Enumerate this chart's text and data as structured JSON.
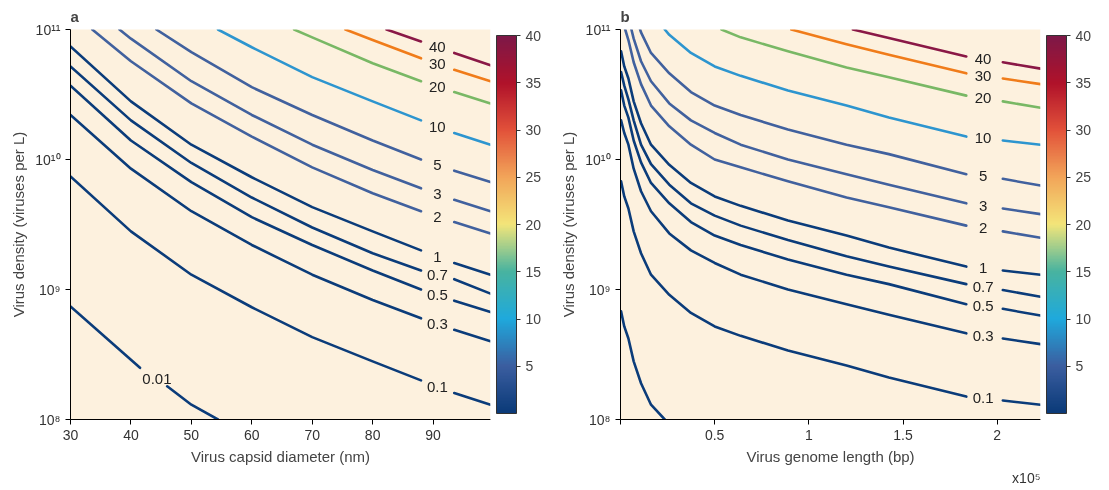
{
  "chart_data": [
    {
      "type": "line",
      "title": "a",
      "xlabel": "Virus capsid diameter (nm)",
      "ylabel": "Virus density (viruses per L)",
      "log": "y",
      "xlim": [
        30,
        99.5
      ],
      "ylim": [
        100000000.0,
        100000000000.0
      ],
      "xticks": [
        30,
        40,
        50,
        60,
        70,
        80,
        90
      ],
      "yticks": [
        {
          "value": 100000000.0,
          "label": "10⁸"
        },
        {
          "value": 1000000000.0,
          "label": "10⁹"
        },
        {
          "value": 10000000000.0,
          "label": "10¹⁰"
        },
        {
          "value": 100000000000.0,
          "label": "10¹¹"
        }
      ],
      "clim": [
        0,
        40
      ],
      "cticks": [
        5,
        10,
        15,
        20,
        25,
        30,
        35,
        40
      ],
      "series": [
        {
          "name": "0.01",
          "color": "#0b3c7a",
          "x": [
            30,
            41.5,
            44.3,
            46,
            50,
            54.4
          ],
          "values": [
            740000000.0,
            250000000.0,
            null,
            180000000.0,
            130000000.0,
            100000000.0
          ]
        },
        {
          "name": "0.1",
          "color": "#0b3c7a",
          "x": [
            30,
            40,
            50,
            60,
            70,
            80,
            88,
            90.7,
            93.5,
            99.5
          ],
          "values": [
            7400000000.0,
            2800000000.0,
            1300000000.0,
            730000000.0,
            430000000.0,
            280000000.0,
            200000000.0,
            null,
            160000000.0,
            130000000.0
          ]
        },
        {
          "name": "0.3",
          "color": "#0b3c7a",
          "x": [
            30,
            40,
            50,
            60,
            70,
            80,
            88,
            90.7,
            93.5,
            99.5
          ],
          "values": [
            22000000000.0,
            8500000000.0,
            4000000000.0,
            2200000000.0,
            1300000000.0,
            830000000.0,
            600000000.0,
            null,
            490000000.0,
            400000000.0
          ]
        },
        {
          "name": "0.5",
          "color": "#0b3c7a",
          "x": [
            30,
            40,
            50,
            60,
            70,
            80,
            88,
            90.7,
            93.5,
            99.5
          ],
          "values": [
            37000000000.0,
            14000000000.0,
            6700000000.0,
            3600000000.0,
            2200000000.0,
            1400000000.0,
            1000000000.0,
            null,
            820000000.0,
            670000000.0
          ]
        },
        {
          "name": "0.7",
          "color": "#0b3c7a",
          "x": [
            30,
            40,
            50,
            60,
            70,
            80,
            88,
            90.7,
            93.5,
            99.5
          ],
          "values": [
            52000000000.0,
            20000000000.0,
            9400000000.0,
            5100000000.0,
            3000000000.0,
            1900000000.0,
            1400000000.0,
            null,
            1200000000.0,
            930000000.0
          ]
        },
        {
          "name": "1",
          "color": "#0b3c7a",
          "x": [
            30,
            40,
            50,
            60,
            70,
            80,
            88,
            90.7,
            93.5,
            99.5
          ],
          "values": [
            74000000000.0,
            28000000000.0,
            13000000000.0,
            7300000000.0,
            4300000000.0,
            2800000000.0,
            2000000000.0,
            null,
            1600000000.0,
            1300000000.0
          ]
        },
        {
          "name": "2",
          "color": "#41619e",
          "x": [
            33.6,
            40,
            50,
            60,
            70,
            80,
            88,
            90.7,
            93.5,
            99.5
          ],
          "values": [
            100000000000.0,
            57000000000.0,
            27000000000.0,
            15000000000.0,
            8700000000.0,
            5500000000.0,
            4000000000.0,
            null,
            3300000000.0,
            2700000000.0
          ]
        },
        {
          "name": "3",
          "color": "#41619e",
          "x": [
            38.1,
            40,
            50,
            60,
            70,
            80,
            88,
            90.7,
            93.5,
            99.5
          ],
          "values": [
            100000000000.0,
            85000000000.0,
            40000000000.0,
            22000000000.0,
            13000000000.0,
            8300000000.0,
            6000000000.0,
            null,
            4900000000.0,
            4000000000.0
          ]
        },
        {
          "name": "5",
          "color": "#41619e",
          "x": [
            44.2,
            50,
            60,
            70,
            80,
            88,
            90.7,
            93.5,
            99.5
          ],
          "values": [
            100000000000.0,
            67000000000.0,
            36000000000.0,
            22000000000.0,
            14000000000.0,
            10000000000.0,
            null,
            8200000000.0,
            6700000000.0
          ]
        },
        {
          "name": "10",
          "color": "#2d95cf",
          "x": [
            54.4,
            60,
            70,
            80,
            88,
            90.7,
            93.5,
            99.5
          ],
          "values": [
            100000000000.0,
            73000000000.0,
            43000000000.0,
            28000000000.0,
            20000000000.0,
            null,
            16000000000.0,
            13000000000.0
          ]
        },
        {
          "name": "20",
          "color": "#79b865",
          "x": [
            67.0,
            70,
            80,
            88,
            90.7,
            93.5,
            99.5
          ],
          "values": [
            100000000000.0,
            87000000000.0,
            55000000000.0,
            40000000000.0,
            null,
            33000000000.0,
            27000000000.0
          ]
        },
        {
          "name": "30",
          "color": "#f07c1a",
          "x": [
            75.5,
            80,
            88,
            90.7,
            93.5,
            99.5
          ],
          "values": [
            100000000000.0,
            83000000000.0,
            60000000000.0,
            null,
            49000000000.0,
            40000000000.0
          ]
        },
        {
          "name": "40",
          "color": "#8a1846",
          "x": [
            82.3,
            88,
            90.7,
            93.5,
            99.5
          ],
          "values": [
            100000000000.0,
            81000000000.0,
            null,
            66000000000.0,
            53000000000.0
          ]
        }
      ]
    },
    {
      "type": "line",
      "title": "b",
      "xlabel": "Virus genome length (bp)",
      "ylabel": "Virus density (viruses per L)",
      "log": "y",
      "xlim": [
        0,
        2.23
      ],
      "ylim": [
        100000000.0,
        100000000000.0
      ],
      "xticks": [
        {
          "value": 0,
          "label": null
        },
        0.5,
        1,
        1.5,
        2
      ],
      "yticks": [
        {
          "value": 100000000.0,
          "label": "10⁸"
        },
        {
          "value": 1000000000.0,
          "label": "10⁹"
        },
        {
          "value": 10000000000.0,
          "label": "10¹⁰"
        },
        {
          "value": 100000000000.0,
          "label": "10¹¹"
        }
      ],
      "clim": [
        0,
        40
      ],
      "cticks": [
        5,
        10,
        15,
        20,
        25,
        30,
        35,
        40
      ],
      "annotations": [
        "x10⁵"
      ],
      "series": [
        {
          "color": "#0b3c7a",
          "x": [
            0.003,
            0.02,
            0.042,
            0.07,
            0.109,
            0.162,
            0.235
          ],
          "values": [
            680000000.0,
            520000000.0,
            420000000.0,
            280000000.0,
            190000000.0,
            130000000.0,
            100000000.0
          ]
        },
        {
          "name": "0.1",
          "color": "#0b3c7a",
          "x": [
            0.003,
            0.02,
            0.042,
            0.07,
            0.109,
            0.162,
            0.259,
            0.374,
            0.5,
            0.638,
            0.889,
            1.2,
            1.425,
            1.836,
            1.925,
            2.03,
            2.23
          ],
          "values": [
            6800000000.0,
            5200000000.0,
            4200000000.0,
            2800000000.0,
            1900000000.0,
            1300000000.0,
            910000000.0,
            660000000.0,
            520000000.0,
            440000000.0,
            340000000.0,
            260000000.0,
            210000000.0,
            150000000.0,
            null,
            140000000.0,
            130000000.0
          ]
        },
        {
          "name": "0.3",
          "color": "#0b3c7a",
          "x": [
            0.003,
            0.02,
            0.042,
            0.07,
            0.109,
            0.162,
            0.259,
            0.374,
            0.5,
            0.638,
            0.889,
            1.2,
            1.425,
            1.836,
            1.925,
            2.03,
            2.23
          ],
          "values": [
            20000000000.0,
            16000000000.0,
            13000000000.0,
            8500000000.0,
            5700000000.0,
            4000000000.0,
            2700000000.0,
            2000000000.0,
            1600000000.0,
            1300000000.0,
            1000000000.0,
            770000000.0,
            640000000.0,
            460000000.0,
            null,
            420000000.0,
            380000000.0
          ]
        },
        {
          "name": "0.5",
          "color": "#0b3c7a",
          "x": [
            0.003,
            0.02,
            0.042,
            0.07,
            0.109,
            0.162,
            0.259,
            0.374,
            0.5,
            0.638,
            0.889,
            1.2,
            1.425,
            1.836,
            1.925,
            2.03,
            2.23
          ],
          "values": [
            34000000000.0,
            26000000000.0,
            21000000000.0,
            14000000000.0,
            9500000000.0,
            6600000000.0,
            4600000000.0,
            3300000000.0,
            2600000000.0,
            2200000000.0,
            1700000000.0,
            1300000000.0,
            1100000000.0,
            770000000.0,
            null,
            710000000.0,
            630000000.0
          ]
        },
        {
          "name": "0.7",
          "color": "#0b3c7a",
          "x": [
            0.003,
            0.02,
            0.042,
            0.07,
            0.109,
            0.162,
            0.259,
            0.374,
            0.5,
            0.638,
            0.889,
            1.2,
            1.425,
            1.836,
            1.925,
            2.03,
            2.23
          ],
          "values": [
            47000000000.0,
            37000000000.0,
            29000000000.0,
            20000000000.0,
            13000000000.0,
            9200000000.0,
            6400000000.0,
            4600000000.0,
            3700000000.0,
            3100000000.0,
            2400000000.0,
            1800000000.0,
            1500000000.0,
            1100000000.0,
            null,
            990000000.0,
            880000000.0
          ]
        },
        {
          "name": "1",
          "color": "#0b3c7a",
          "x": [
            0.003,
            0.02,
            0.042,
            0.07,
            0.109,
            0.162,
            0.259,
            0.374,
            0.5,
            0.638,
            0.889,
            1.2,
            1.425,
            1.836,
            1.925,
            2.03,
            2.23
          ],
          "values": [
            68000000000.0,
            52000000000.0,
            42000000000.0,
            28000000000.0,
            19000000000.0,
            13000000000.0,
            9100000000.0,
            6600000000.0,
            5200000000.0,
            4400000000.0,
            3400000000.0,
            2600000000.0,
            2100000000.0,
            1500000000.0,
            null,
            1400000000.0,
            1300000000.0
          ]
        },
        {
          "name": "2",
          "color": "#41619e",
          "x": [
            0.025,
            0.042,
            0.07,
            0.109,
            0.162,
            0.259,
            0.374,
            0.5,
            0.638,
            0.889,
            1.2,
            1.425,
            1.836,
            1.925,
            2.03,
            2.23
          ],
          "values": [
            100000000000.0,
            83000000000.0,
            56000000000.0,
            38000000000.0,
            26000000000.0,
            18000000000.0,
            13000000000.0,
            10000000000.0,
            8700000000.0,
            6800000000.0,
            5100000000.0,
            4300000000.0,
            3100000000.0,
            null,
            2800000000.0,
            2500000000.0
          ]
        },
        {
          "name": "3",
          "color": "#41619e",
          "x": [
            0.058,
            0.07,
            0.109,
            0.162,
            0.259,
            0.374,
            0.5,
            0.638,
            0.889,
            1.2,
            1.425,
            1.836,
            1.925,
            2.03,
            2.23
          ],
          "values": [
            100000000000.0,
            85000000000.0,
            57000000000.0,
            40000000000.0,
            27000000000.0,
            20000000000.0,
            16000000000.0,
            13000000000.0,
            10000000000.0,
            7700000000.0,
            6400000000.0,
            4600000000.0,
            null,
            4200000000.0,
            3800000000.0
          ]
        },
        {
          "name": "5",
          "color": "#41619e",
          "x": [
            0.104,
            0.109,
            0.162,
            0.259,
            0.374,
            0.5,
            0.638,
            0.889,
            1.2,
            1.425,
            1.836,
            1.925,
            2.03,
            2.23
          ],
          "values": [
            100000000000.0,
            95000000000.0,
            66000000000.0,
            46000000000.0,
            33000000000.0,
            26000000000.0,
            22000000000.0,
            17000000000.0,
            13000000000.0,
            11000000000.0,
            7700000000.0,
            null,
            7100000000.0,
            6300000000.0
          ]
        },
        {
          "name": "10",
          "color": "#2d95cf",
          "x": [
            0.235,
            0.259,
            0.374,
            0.5,
            0.638,
            0.889,
            1.2,
            1.425,
            1.836,
            1.925,
            2.03,
            2.23
          ],
          "values": [
            100000000000.0,
            91000000000.0,
            66000000000.0,
            52000000000.0,
            44000000000.0,
            34000000000.0,
            26000000000.0,
            21000000000.0,
            15000000000.0,
            null,
            14000000000.0,
            13000000000.0
          ]
        },
        {
          "name": "20",
          "color": "#79b865",
          "x": [
            0.536,
            0.638,
            0.889,
            1.2,
            1.425,
            1.836,
            1.925,
            2.03,
            2.23
          ],
          "values": [
            100000000000.0,
            87000000000.0,
            68000000000.0,
            51000000000.0,
            43000000000.0,
            31000000000.0,
            null,
            28000000000.0,
            25000000000.0
          ]
        },
        {
          "name": "30",
          "color": "#f07c1a",
          "x": [
            0.907,
            1.2,
            1.425,
            1.836,
            1.925,
            2.03,
            2.23
          ],
          "values": [
            100000000000.0,
            77000000000.0,
            64000000000.0,
            46000000000.0,
            null,
            42000000000.0,
            38000000000.0
          ]
        },
        {
          "name": "40",
          "color": "#8a1846",
          "x": [
            1.234,
            1.425,
            1.836,
            1.925,
            2.03,
            2.23
          ],
          "values": [
            100000000000.0,
            86000000000.0,
            62000000000.0,
            null,
            56000000000.0,
            50000000000.0
          ]
        }
      ]
    }
  ]
}
